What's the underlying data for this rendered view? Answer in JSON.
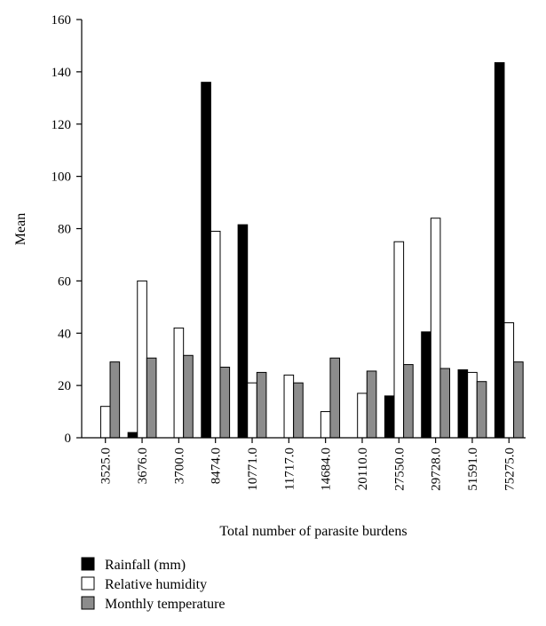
{
  "chart_data": {
    "type": "bar",
    "xlabel": "Total number of parasite burdens",
    "ylabel": "Mean",
    "ylim": [
      0,
      160
    ],
    "yticks": [
      0,
      20,
      40,
      60,
      80,
      100,
      120,
      140,
      160
    ],
    "grid": false,
    "legend_position": "bottom-left",
    "categories": [
      "3525.0",
      "3676.0",
      "3700.0",
      "8474.0",
      "10771.0",
      "11717.0",
      "14684.0",
      "20110.0",
      "27550.0",
      "29728.0",
      "51591.0",
      "75275.0"
    ],
    "series": [
      {
        "name": "Rainfall (mm)",
        "color": "#000000",
        "values": [
          0,
          2,
          0,
          136,
          81.5,
          0,
          0,
          0,
          16,
          40.5,
          26,
          143.5
        ]
      },
      {
        "name": "Relative humidity",
        "color": "#ffffff",
        "values": [
          12,
          60,
          42,
          79,
          21,
          24,
          10,
          17,
          75,
          84,
          25,
          44
        ]
      },
      {
        "name": "Monthly temperature",
        "color": "#8c8c8c",
        "values": [
          29,
          30.5,
          31.5,
          27,
          25,
          21,
          30.5,
          25.5,
          28,
          26.5,
          21.5,
          29
        ]
      }
    ]
  }
}
